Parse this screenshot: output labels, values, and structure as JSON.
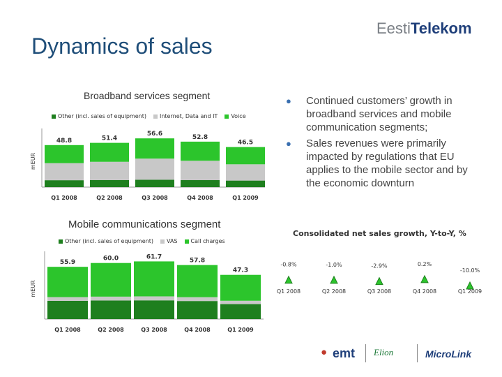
{
  "title": "Dynamics of sales",
  "brand": {
    "part1": "Eesti",
    "part2": "Telekom"
  },
  "bullets": [
    "Continued customers’ growth in broadband services and mobile communication segments;",
    "Sales revenues were primarily impacted by regulations that EU applies to the mobile sector and by the economic downturn"
  ],
  "footer_logos": {
    "emt": "emt",
    "elion": "Elion",
    "microlink": "MicroLink"
  },
  "colors": {
    "dark_green": "#1e7f1e",
    "gray": "#c8c8c8",
    "green": "#2cc52c",
    "title_blue": "#1f4e79"
  },
  "chart_data": [
    {
      "type": "bar",
      "stacked": true,
      "title": "Broadband services segment",
      "ylabel": "mEUR",
      "categories": [
        "Q1 2008",
        "Q2 2008",
        "Q3 2008",
        "Q4 2008",
        "Q1 2009"
      ],
      "totals": [
        "48.8",
        "51.4",
        "56.6",
        "52.8",
        "46.5"
      ],
      "series": [
        {
          "name": "Other (incl. sales of equipment)",
          "color": "#1e7f1e",
          "values": [
            8.0,
            8.2,
            8.5,
            8.1,
            7.6
          ]
        },
        {
          "name": "Internet, Data and IT",
          "color": "#c8c8c8",
          "values": [
            19.8,
            21.2,
            24.6,
            22.5,
            18.9
          ]
        },
        {
          "name": "Voice",
          "color": "#2cc52c",
          "values": [
            21.0,
            22.0,
            23.5,
            22.2,
            20.0
          ]
        }
      ],
      "ylim": [
        0,
        60
      ]
    },
    {
      "type": "bar",
      "stacked": true,
      "title": "Mobile communications segment",
      "ylabel": "mEUR",
      "categories": [
        "Q1 2008",
        "Q2 2008",
        "Q3 2008",
        "Q4 2008",
        "Q1 2009"
      ],
      "totals": [
        "55.9",
        "60.0",
        "61.7",
        "57.8",
        "47.3"
      ],
      "series": [
        {
          "name": "Other (incl. sales of equipment)",
          "color": "#1e7f1e",
          "values": [
            19.5,
            19.8,
            20.0,
            19.3,
            16.0
          ]
        },
        {
          "name": "VAS",
          "color": "#c8c8c8",
          "values": [
            4.0,
            4.2,
            4.3,
            4.1,
            3.6
          ]
        },
        {
          "name": "Call charges",
          "color": "#2cc52c",
          "values": [
            32.4,
            36.0,
            37.4,
            34.4,
            27.7
          ]
        }
      ],
      "ylim": [
        0,
        65
      ]
    },
    {
      "type": "scatter",
      "title": "Consolidated net sales growth, Y-to-Y, %",
      "categories": [
        "Q1 2008",
        "Q2 2008",
        "Q3 2008",
        "Q4 2008",
        "Q1 2009"
      ],
      "labels": [
        "-0.8%",
        "-1.0%",
        "-2.9%",
        "0.2%",
        "-10.0%"
      ],
      "values": [
        -0.8,
        -1.0,
        -2.9,
        0.2,
        -10.0
      ]
    }
  ]
}
